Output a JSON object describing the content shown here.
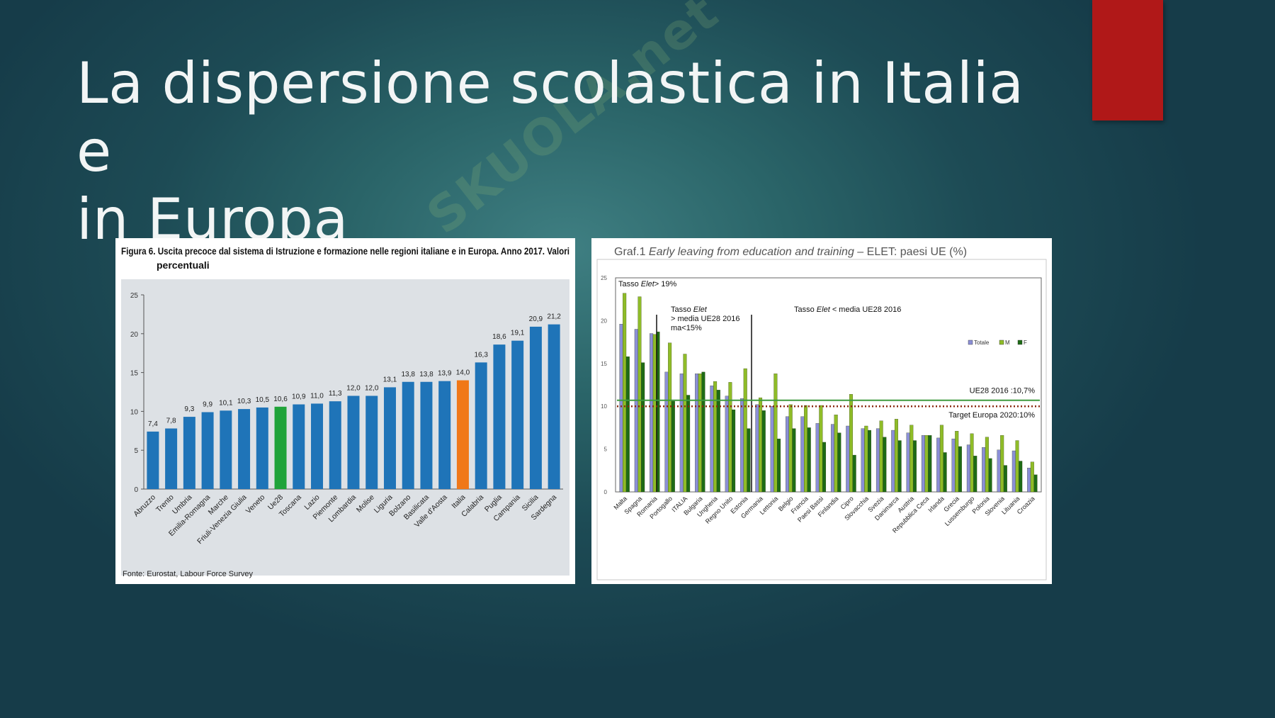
{
  "slide": {
    "title_line1": "La dispersione scolastica in Italia e",
    "title_line2": "in Europa",
    "accent_color": "#b01818"
  },
  "watermark": {
    "text": "SKUOLA.net"
  },
  "chart_data": [
    {
      "type": "bar",
      "title_line1": "Figura 6. Uscita precoce dal sistema di Istruzione e formazione nelle regioni italiane e in Europa. Anno 2017. Valori",
      "title_line2": "percentuali",
      "source": "Fonte: Eurostat, Labour Force Survey",
      "categories": [
        "Abruzzo",
        "Trento",
        "Umbria",
        "Emilia-Romagna",
        "Marche",
        "Friuli-Venezia Giulia",
        "Veneto",
        "Ue28",
        "Toscana",
        "Lazio",
        "Piemonte",
        "Lombardia",
        "Molise",
        "Liguria",
        "Bolzano",
        "Basilicata",
        "Valle d'Aosta",
        "Italia",
        "Calabria",
        "Puglia",
        "Campania",
        "Sicilia",
        "Sardegna"
      ],
      "values": [
        7.4,
        7.8,
        9.3,
        9.9,
        10.1,
        10.3,
        10.5,
        10.6,
        10.9,
        11.0,
        11.3,
        12.0,
        12.0,
        13.1,
        13.8,
        13.8,
        13.9,
        14.0,
        16.3,
        18.6,
        19.1,
        20.9,
        21.2
      ],
      "value_labels": [
        "7,4",
        "7,8",
        "9,3",
        "9,9",
        "10,1",
        "10,3",
        "10,5",
        "10,6",
        "10,9",
        "11,0",
        "11,3",
        "12,0",
        "12,0",
        "13,1",
        "13,8",
        "13,8",
        "13,9",
        "14,0",
        "16,3",
        "18,6",
        "19,1",
        "20,9",
        "21,2"
      ],
      "highlight": {
        "Ue28": "#1fa33a",
        "Italia": "#f07818"
      },
      "bar_color": "#1f74b8",
      "yticks": [
        "0",
        "5",
        "10",
        "15",
        "20",
        "25"
      ],
      "ylim": [
        0,
        25
      ],
      "grid": false
    },
    {
      "type": "bar",
      "title_prefix": "Graf.1 ",
      "title_italic": "Early leaving from education and training",
      "title_suffix": " – ELET: paesi UE (%)",
      "categories": [
        "Malta",
        "Spagna",
        "Romania",
        "Portogallo",
        "ITALIA",
        "Bulgaria",
        "Ungheria",
        "Regno Unito",
        "Estonia",
        "Germania",
        "Lettonia",
        "Belgio",
        "Francia",
        "Paesi Bassi",
        "Finlandia",
        "Cipro",
        "Slovacchia",
        "Svezia",
        "Danimarca",
        "Austria",
        "Repubblica Ceca",
        "Irlanda",
        "Grecia",
        "Lussemburgo",
        "Polonia",
        "Slovenia",
        "Lituania",
        "Croazia"
      ],
      "series": [
        {
          "name": "Totale",
          "color": "#8b8fd6",
          "values": [
            19.6,
            19.0,
            18.5,
            14.0,
            13.8,
            13.8,
            12.4,
            11.2,
            10.9,
            10.2,
            10.0,
            8.8,
            8.8,
            8.0,
            7.9,
            7.7,
            7.4,
            7.4,
            7.2,
            6.9,
            6.6,
            6.3,
            6.2,
            5.5,
            5.2,
            4.9,
            4.8,
            2.8
          ]
        },
        {
          "name": "M",
          "color": "#8fbc28",
          "values": [
            23.2,
            22.8,
            18.4,
            17.4,
            16.1,
            13.8,
            12.9,
            12.8,
            14.4,
            11.0,
            13.8,
            10.2,
            10.1,
            10.1,
            9.0,
            11.4,
            7.7,
            8.3,
            8.5,
            7.8,
            6.6,
            7.8,
            7.1,
            6.8,
            6.4,
            6.6,
            6.0,
            3.5
          ]
        },
        {
          "name": "F",
          "color": "#1e6b16",
          "values": [
            15.8,
            15.1,
            18.7,
            10.6,
            11.3,
            14.0,
            11.9,
            9.6,
            7.4,
            9.5,
            6.2,
            7.4,
            7.5,
            5.8,
            6.9,
            4.3,
            7.2,
            6.4,
            6.0,
            6.0,
            6.6,
            4.6,
            5.3,
            4.2,
            3.9,
            3.1,
            3.6,
            2.0
          ]
        }
      ],
      "reference_lines": [
        {
          "label": "UE28 2016 :10,7%",
          "value": 10.7,
          "color": "#3f9a3f",
          "style": "solid"
        },
        {
          "label": "Target Europa 2020:10%",
          "value": 10.0,
          "color": "#8a2a10",
          "style": "dotted"
        }
      ],
      "annotations": {
        "a1_prefix": "Tasso ",
        "a1_italic": "Elet",
        "a1_suffix": "> 19%",
        "a2_prefix": "Tasso ",
        "a2_italic": "Elet",
        "a2_line2": "> media UE28 2016",
        "a2_line3": "ma<15%",
        "a3_prefix": "Tasso ",
        "a3_italic": "Elet",
        "a3_suffix": " < media UE28 2016"
      },
      "legend_placement": "top-right",
      "yticks": [
        "0",
        "5",
        "10",
        "15",
        "20",
        "25"
      ],
      "ylim": [
        0,
        25
      ],
      "grid": false
    }
  ]
}
